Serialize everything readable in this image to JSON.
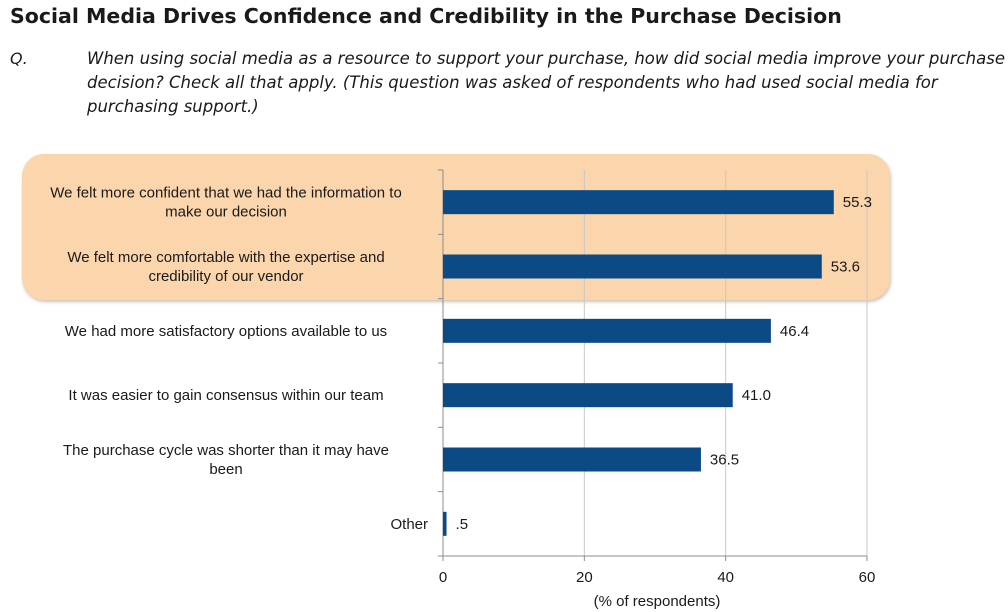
{
  "header": {
    "title": "Social Media Drives Confidence and Credibility in the Purchase Decision",
    "question_label": "Q.",
    "question_text": "When using social media as a resource to support your purchase, how did social media improve your purchase decision? Check all that apply. (This question was asked of respondents who had used social media for purchasing support.)"
  },
  "colors": {
    "bar": "#0b4a85",
    "highlight": "#fbd5ac",
    "grid": "#c8c8c8",
    "axis": "#8c8c8c"
  },
  "chart_data": {
    "type": "bar",
    "orientation": "horizontal",
    "categories": [
      [
        "We felt more confident that we had the information to",
        "make our decision"
      ],
      [
        "We felt more comfortable with the expertise and",
        "credibility of our vendor"
      ],
      [
        "We had more satisfactory options available to us"
      ],
      [
        "It was easier to gain consensus within our team"
      ],
      [
        "The purchase cycle was shorter than it may have",
        "been"
      ],
      [
        "Other"
      ]
    ],
    "values": [
      55.3,
      53.6,
      46.4,
      41.0,
      36.5,
      0.5
    ],
    "value_labels": [
      "55.3",
      "53.6",
      "46.4",
      "41.0",
      "36.5",
      ".5"
    ],
    "highlighted_categories": [
      0,
      1
    ],
    "xlim": [
      0,
      60
    ],
    "xticks": [
      0,
      20,
      40,
      60
    ],
    "xlabel": "(% of respondents)",
    "grid": true
  }
}
